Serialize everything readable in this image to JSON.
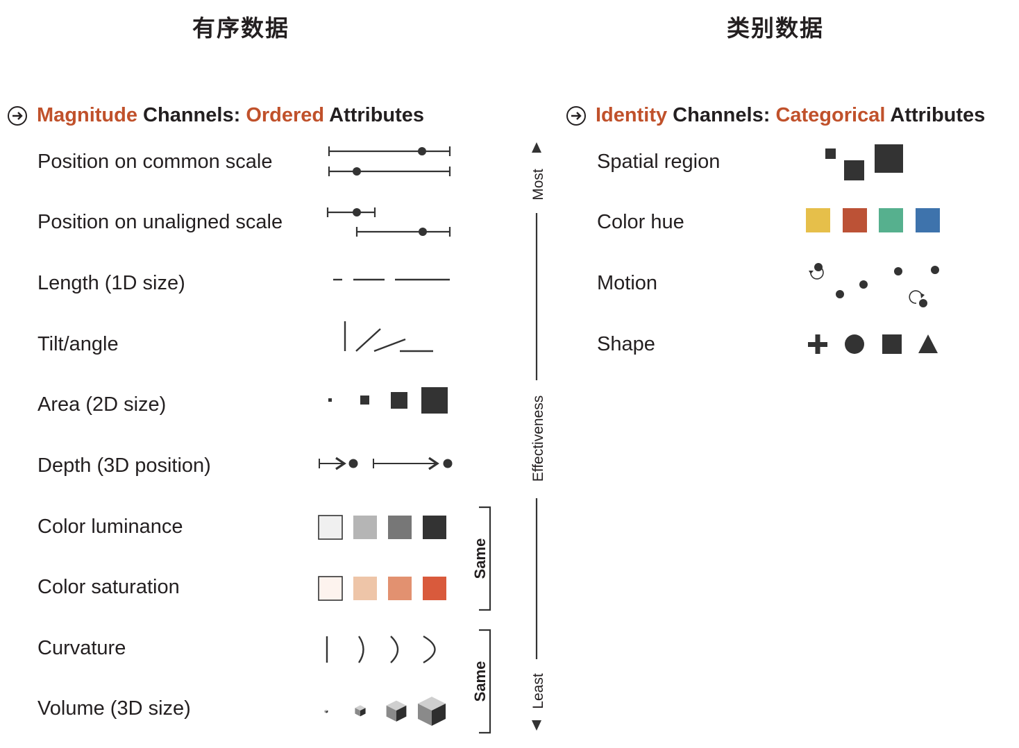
{
  "headers": {
    "ordered": "有序数据",
    "categorical": "类别数据"
  },
  "magnitude": {
    "heading": [
      {
        "text": "Magnitude",
        "highlight": true
      },
      {
        "text": " Channels: ",
        "highlight": false
      },
      {
        "text": "Ordered",
        "highlight": true
      },
      {
        "text": " Attributes",
        "highlight": false
      }
    ],
    "rows": [
      "Position on common scale",
      "Position on unaligned scale",
      "Length (1D size)",
      "Tilt/angle",
      "Area (2D size)",
      "Depth (3D position)",
      "Color luminance",
      "Color saturation",
      "Curvature",
      "Volume (3D size)"
    ]
  },
  "identity": {
    "heading": [
      {
        "text": "Identity",
        "highlight": true
      },
      {
        "text": " Channels: ",
        "highlight": false
      },
      {
        "text": "Categorical",
        "highlight": true
      },
      {
        "text": " Attributes",
        "highlight": false
      }
    ],
    "rows": [
      "Spatial region",
      "Color hue",
      "Motion",
      "Shape"
    ]
  },
  "effectiveness": {
    "top": "Most",
    "middle": "Effectiveness",
    "bottom": "Least"
  },
  "brackets": [
    "Same",
    "Same"
  ],
  "colors": {
    "accent": "#c0512b",
    "ink": "#333333",
    "luminance": [
      "#f0f0f0",
      "#b5b5b5",
      "#777777",
      "#333333"
    ],
    "saturation": [
      "#fdf3ee",
      "#eec5a8",
      "#e29170",
      "#d95a3c"
    ],
    "hue": [
      "#e6bf4a",
      "#bc5236",
      "#56b08e",
      "#3e73ac"
    ]
  },
  "icons": [
    "circled-arrow-icon",
    "plus-icon",
    "circle-icon",
    "square-icon",
    "triangle-icon",
    "rotation-arrow-icon",
    "cube-icon"
  ]
}
